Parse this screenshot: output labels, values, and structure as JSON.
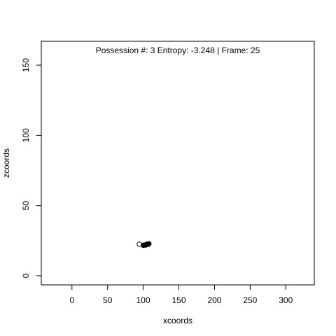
{
  "chart_data": {
    "type": "scatter",
    "title": "Possession #: 3 Entropy: -3.248 | Frame: 25",
    "xlabel": "xcoords",
    "ylabel": "zcoords",
    "xlim": [
      -43,
      340
    ],
    "ylim": [
      -6.5,
      167
    ],
    "x_ticks": [
      0,
      50,
      100,
      150,
      200,
      250,
      300
    ],
    "y_ticks": [
      0,
      50,
      100,
      150
    ],
    "grid": false,
    "legend": "none",
    "series": [
      {
        "marker": "filled-circle",
        "color": "#000000",
        "points": [
          [
            100,
            21.7
          ],
          [
            101,
            21.8
          ],
          [
            102,
            21.9
          ],
          [
            103,
            22.0
          ],
          [
            104,
            22.1
          ],
          [
            105,
            22.2
          ],
          [
            106,
            22.4
          ],
          [
            107,
            22.6
          ],
          [
            108,
            22.8
          ],
          [
            103.5,
            21.9
          ],
          [
            106.5,
            22.3
          ],
          [
            105.5,
            22.5
          ]
        ]
      },
      {
        "marker": "open-circle",
        "color": "#000000",
        "points": [
          [
            94.5,
            22.5
          ]
        ]
      }
    ]
  }
}
